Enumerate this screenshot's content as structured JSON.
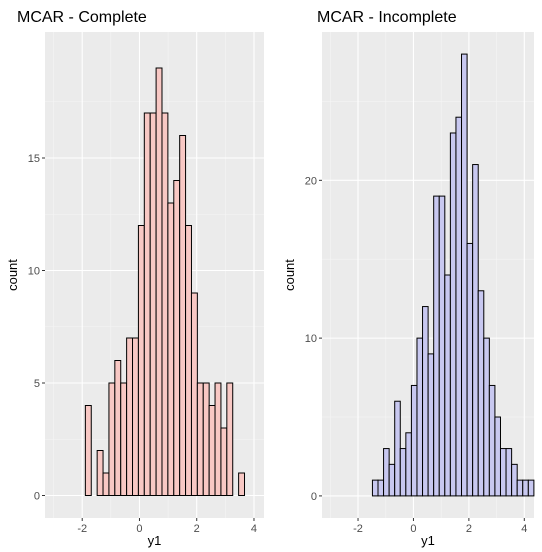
{
  "chart_data": [
    {
      "type": "bar",
      "title": "MCAR - Complete",
      "xlabel": "y1",
      "ylabel": "count",
      "xlim": [
        -3.3,
        4.35
      ],
      "ylim": [
        -1.0,
        20.6
      ],
      "x_ticks": [
        -2,
        0,
        2,
        4
      ],
      "y_ticks": [
        0,
        5,
        10,
        15
      ],
      "x_tick_labels": [
        "-2",
        "0",
        "2",
        "4"
      ],
      "y_tick_labels": [
        "0",
        "5",
        "10",
        "15"
      ],
      "grid": true,
      "fill_color": "#f8c8c4",
      "outline_color": "#000000",
      "bins": {
        "start": -1.89,
        "width": 0.2059,
        "counts": [
          4,
          0,
          2,
          1,
          5,
          6,
          5,
          7,
          7,
          12,
          17,
          17,
          19,
          17,
          13,
          14,
          16,
          12,
          9,
          5,
          5,
          4,
          5,
          3,
          5,
          0,
          1
        ]
      }
    },
    {
      "type": "bar",
      "title": "MCAR - Incomplete",
      "xlabel": "y1",
      "ylabel": "count",
      "xlim": [
        -3.3,
        4.35
      ],
      "ylim": [
        -1.4,
        29.4
      ],
      "x_ticks": [
        -2,
        0,
        2,
        4
      ],
      "y_ticks": [
        0,
        10,
        20
      ],
      "x_tick_labels": [
        "-2",
        "0",
        "2",
        "4"
      ],
      "y_tick_labels": [
        "0",
        "10",
        "20"
      ],
      "grid": true,
      "fill_color": "#c8c8f0",
      "outline_color": "#000000",
      "bins": {
        "start": -1.48,
        "width": 0.2009,
        "counts": [
          1,
          1,
          3,
          2,
          6,
          3,
          4,
          7,
          10,
          12,
          9,
          19,
          19,
          14,
          23,
          24,
          28,
          16,
          21,
          13,
          10,
          7,
          5,
          3,
          3,
          2,
          1,
          1,
          1
        ]
      }
    }
  ]
}
